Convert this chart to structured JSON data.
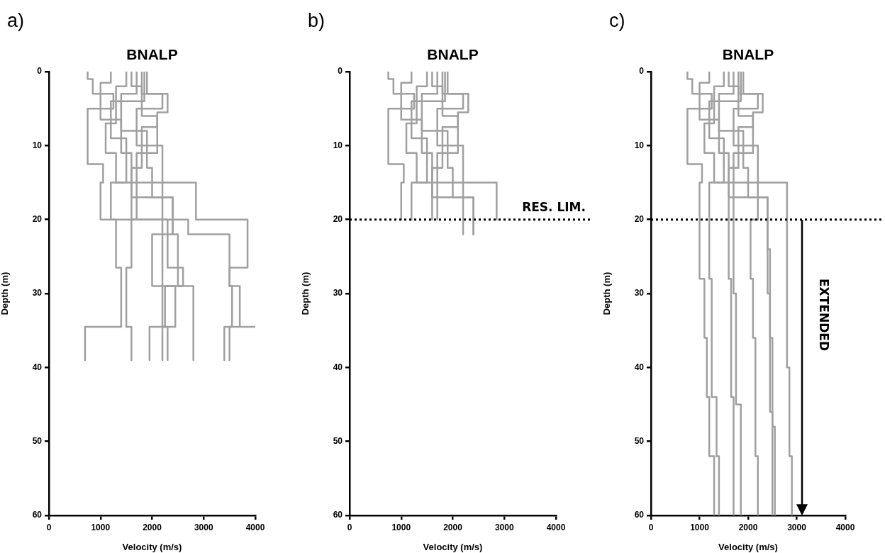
{
  "chart_data": [
    {
      "type": "line",
      "title": "BNALP",
      "xlabel": "Velocity (m/s)",
      "ylabel": "Depth (m)",
      "xlim": [
        0,
        4000
      ],
      "xticks": [
        0,
        1000,
        2000,
        3000,
        4000
      ],
      "ylim": [
        60,
        0
      ],
      "yticks": [
        0,
        10,
        20,
        30,
        40,
        50,
        60
      ],
      "grid": false,
      "legend": false,
      "marker": "none",
      "annotations": [
        "a)"
      ],
      "series": [
        {
          "color": "#a0a0a0",
          "x": [
            750,
            750,
            850,
            850,
            1250,
            1250,
            750,
            750,
            1050,
            1050,
            1000,
            1000,
            1300,
            1300,
            1400,
            1400,
            700,
            700
          ],
          "values": [
            0,
            1,
            1,
            3,
            3,
            5,
            5,
            12.5,
            12.5,
            15,
            15,
            20,
            20,
            26.5,
            26.5,
            34.5,
            34.5,
            39
          ]
        },
        {
          "color": "#a0a0a0",
          "x": [
            1200,
            1200,
            1000,
            1000,
            1400,
            1400,
            1600,
            1600,
            2400,
            2400,
            2200,
            2200,
            2300,
            2300
          ],
          "values": [
            0,
            1.5,
            1.5,
            6.5,
            6.5,
            11,
            11,
            17,
            17,
            22,
            22,
            34.5,
            34.5,
            39
          ]
        },
        {
          "color": "#a0a0a0",
          "x": [
            1800,
            1800,
            2200,
            2200,
            1700,
            1700,
            2200,
            2200,
            2850,
            2850,
            3850,
            3850,
            3500,
            3500,
            3700,
            3700,
            4000,
            3400,
            3400
          ],
          "values": [
            0,
            3,
            3,
            5,
            5,
            10,
            10,
            15,
            15,
            20,
            20,
            26.5,
            26.5,
            29,
            29,
            34.5,
            34.5,
            34.5,
            39
          ]
        },
        {
          "color": "#a0a0a0",
          "x": [
            1900,
            1900,
            2300,
            2300,
            2100,
            2100,
            1800,
            1800,
            1600,
            1600,
            2700,
            2700,
            3500,
            3500,
            3550,
            3550,
            3500,
            3500
          ],
          "values": [
            0,
            3,
            3,
            5.5,
            5.5,
            7.5,
            7.5,
            13,
            13,
            20,
            20,
            22,
            22,
            29,
            29,
            34.5,
            34.5,
            39
          ]
        },
        {
          "color": "#a0a0a0",
          "x": [
            1500,
            1500,
            1300,
            1300,
            1100,
            1100,
            1300,
            1300,
            1700,
            1700,
            1600,
            1600,
            1500,
            1500,
            1600,
            1600
          ],
          "values": [
            0,
            2,
            2,
            7,
            7,
            11,
            11,
            15,
            15,
            20,
            20,
            26.5,
            26.5,
            34.5,
            34.5,
            39
          ]
        },
        {
          "color": "#a0a0a0",
          "x": [
            1700,
            1700,
            1400,
            1400,
            1900,
            1900,
            2000,
            2000,
            2400,
            2400,
            2500,
            2500,
            2800,
            2800
          ],
          "values": [
            0,
            3,
            3,
            8,
            8,
            13,
            13,
            17,
            17,
            22,
            22,
            29,
            29,
            39
          ]
        },
        {
          "color": "#a0a0a0",
          "x": [
            1600,
            1600,
            1800,
            1800,
            2100,
            2100,
            1700,
            1700,
            2200,
            2200,
            2000,
            2000,
            2450,
            2450,
            1950,
            1950
          ],
          "values": [
            0,
            2,
            2,
            6,
            6,
            11,
            11,
            15,
            15,
            22,
            22,
            29,
            29,
            34.5,
            34.5,
            39
          ]
        },
        {
          "color": "#a0a0a0",
          "x": [
            1850,
            1850,
            1200,
            1200,
            1500,
            1500,
            1200,
            1200,
            2300,
            2300,
            2600,
            2600,
            2250,
            2250,
            2200,
            2200
          ],
          "values": [
            0,
            4,
            4,
            9,
            9,
            15,
            15,
            20,
            20,
            26.5,
            26.5,
            29,
            29,
            34.5,
            34.5,
            39
          ]
        }
      ]
    },
    {
      "type": "line",
      "title": "BNALP",
      "xlabel": "Velocity (m/s)",
      "ylabel": "Depth (m)",
      "xlim": [
        0,
        4000
      ],
      "xticks": [
        0,
        1000,
        2000,
        3000,
        4000
      ],
      "ylim": [
        60,
        0
      ],
      "yticks": [
        0,
        10,
        20,
        30,
        40,
        50,
        60
      ],
      "grid": false,
      "legend": false,
      "marker": "none",
      "annotations": [
        "b)"
      ],
      "ref_lines": [
        {
          "axis": "y",
          "value": 20,
          "label": "RES. LIM.",
          "line_style": "dotted",
          "color": "#000000"
        }
      ],
      "series": [
        {
          "color": "#a0a0a0",
          "x": [
            750,
            750,
            850,
            850,
            1250,
            1250,
            750,
            750,
            1050,
            1050,
            1000,
            1000
          ],
          "values": [
            0,
            1,
            1,
            3,
            3,
            5,
            5,
            12.5,
            12.5,
            15,
            15,
            20
          ]
        },
        {
          "color": "#a0a0a0",
          "x": [
            1200,
            1200,
            1000,
            1000,
            1400,
            1400,
            1600,
            1600,
            2400,
            2400
          ],
          "values": [
            0,
            1.5,
            1.5,
            6.5,
            6.5,
            11,
            11,
            17,
            17,
            22
          ]
        },
        {
          "color": "#a0a0a0",
          "x": [
            1800,
            1800,
            2200,
            2200,
            1700,
            1700,
            2200,
            2200,
            2850,
            2850
          ],
          "values": [
            0,
            3,
            3,
            5,
            5,
            10,
            10,
            15,
            15,
            20
          ]
        },
        {
          "color": "#a0a0a0",
          "x": [
            1900,
            1900,
            2300,
            2300,
            2100,
            2100,
            1800,
            1800,
            1600,
            1600
          ],
          "values": [
            0,
            3,
            3,
            5.5,
            5.5,
            7.5,
            7.5,
            13,
            13,
            20
          ]
        },
        {
          "color": "#a0a0a0",
          "x": [
            1500,
            1500,
            1300,
            1300,
            1100,
            1100,
            1300,
            1300,
            1700,
            1700
          ],
          "values": [
            0,
            2,
            2,
            7,
            7,
            11,
            11,
            15,
            15,
            20
          ]
        },
        {
          "color": "#a0a0a0",
          "x": [
            1700,
            1700,
            1400,
            1400,
            1900,
            1900,
            2000,
            2000,
            2400,
            2400
          ],
          "values": [
            0,
            3,
            3,
            8,
            8,
            13,
            13,
            17,
            17,
            22
          ]
        },
        {
          "color": "#a0a0a0",
          "x": [
            1600,
            1600,
            1800,
            1800,
            2100,
            2100,
            1700,
            1700,
            2200,
            2200
          ],
          "values": [
            0,
            2,
            2,
            6,
            6,
            11,
            11,
            15,
            15,
            22
          ]
        },
        {
          "color": "#a0a0a0",
          "x": [
            1850,
            1850,
            1200,
            1200,
            1500,
            1500,
            1200,
            1200
          ],
          "values": [
            0,
            4,
            4,
            9,
            9,
            15,
            15,
            20
          ]
        }
      ]
    },
    {
      "type": "line",
      "title": "BNALP",
      "xlabel": "Velocity (m/s)",
      "ylabel": "Depth (m)",
      "xlim": [
        0,
        4000
      ],
      "xticks": [
        0,
        1000,
        2000,
        3000,
        4000
      ],
      "ylim": [
        60,
        0
      ],
      "yticks": [
        0,
        10,
        20,
        30,
        40,
        50,
        60
      ],
      "grid": false,
      "legend": false,
      "marker": "none",
      "annotations": [
        "c)",
        "EXTENDED"
      ],
      "ref_lines": [
        {
          "axis": "y",
          "value": 20,
          "line_style": "dotted",
          "color": "#000000"
        }
      ],
      "series": [
        {
          "color": "#a0a0a0",
          "x": [
            750,
            750,
            850,
            850,
            1250,
            1250,
            750,
            750,
            1050,
            1050,
            1000,
            1000,
            1100,
            1100,
            1150,
            1150,
            1200,
            1200,
            1300,
            1300
          ],
          "values": [
            0,
            1,
            1,
            3,
            3,
            5,
            5,
            12.5,
            12.5,
            15,
            15,
            28,
            28,
            36,
            36,
            44,
            44,
            52,
            52,
            60
          ]
        },
        {
          "color": "#a0a0a0",
          "x": [
            1200,
            1200,
            1000,
            1000,
            1400,
            1400,
            1600,
            1600,
            2400,
            2400,
            2450,
            2450,
            2500,
            2500,
            2550,
            2550
          ],
          "values": [
            0,
            1.5,
            1.5,
            6.5,
            6.5,
            11,
            11,
            17,
            17,
            24,
            24,
            36,
            36,
            48,
            48,
            60
          ]
        },
        {
          "color": "#a0a0a0",
          "x": [
            1800,
            1800,
            2200,
            2200,
            1700,
            1700,
            2200,
            2200,
            2800,
            2800,
            2850,
            2850,
            2900,
            2900
          ],
          "values": [
            0,
            3,
            3,
            5,
            5,
            10,
            10,
            15,
            15,
            40,
            40,
            52,
            52,
            60
          ]
        },
        {
          "color": "#a0a0a0",
          "x": [
            1900,
            1900,
            2300,
            2300,
            2100,
            2100,
            1800,
            1800,
            1600,
            1600,
            1650,
            1650,
            1700,
            1700
          ],
          "values": [
            0,
            3,
            3,
            5.5,
            5.5,
            7.5,
            7.5,
            13,
            13,
            28,
            28,
            44,
            44,
            60
          ]
        },
        {
          "color": "#a0a0a0",
          "x": [
            1500,
            1500,
            1300,
            1300,
            1100,
            1100,
            1300,
            1300,
            1700,
            1700,
            1750,
            1750,
            1850,
            1850
          ],
          "values": [
            0,
            2,
            2,
            7,
            7,
            11,
            11,
            15,
            15,
            30,
            30,
            45,
            45,
            60
          ]
        },
        {
          "color": "#a0a0a0",
          "x": [
            1700,
            1700,
            1400,
            1400,
            1900,
            1900,
            2000,
            2000,
            2400,
            2400,
            2450,
            2450,
            2500,
            2500
          ],
          "values": [
            0,
            3,
            3,
            8,
            8,
            13,
            13,
            17,
            17,
            30,
            30,
            46,
            46,
            60
          ]
        },
        {
          "color": "#a0a0a0",
          "x": [
            1600,
            1600,
            1800,
            1800,
            2100,
            2100,
            1700,
            1700,
            2200,
            2200,
            2050,
            2050,
            2100,
            2100,
            2150,
            2150,
            2200,
            2200
          ],
          "values": [
            0,
            2,
            2,
            6,
            6,
            11,
            11,
            15,
            15,
            20,
            20,
            28,
            28,
            36,
            36,
            52,
            52,
            60
          ]
        },
        {
          "color": "#a0a0a0",
          "x": [
            1850,
            1850,
            1200,
            1200,
            1500,
            1500,
            1200,
            1200,
            1250,
            1250,
            1350,
            1350,
            1400,
            1400
          ],
          "values": [
            0,
            4,
            4,
            9,
            9,
            15,
            15,
            28,
            28,
            44,
            44,
            52,
            52,
            60
          ]
        }
      ]
    }
  ]
}
